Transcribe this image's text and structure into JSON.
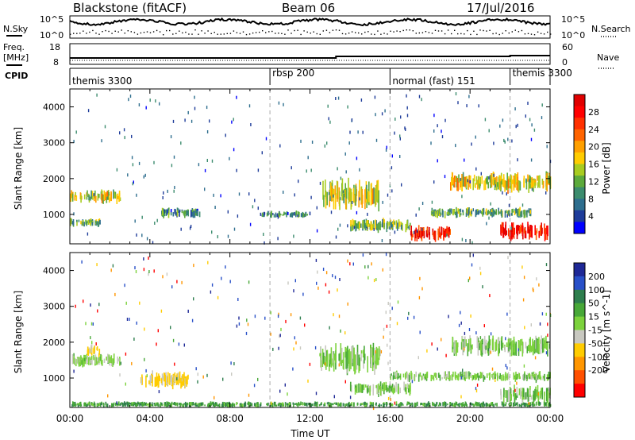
{
  "header": {
    "station": "Blackstone (fitACF)",
    "beam": "Beam 06",
    "date": "17/Jul/2016"
  },
  "top_panels": {
    "nsky_label": "N.Sky",
    "nsearch_label": "N.Search",
    "left_ticks_noise": [
      "10^5",
      "10^0"
    ],
    "right_ticks_noise": [
      "10^5",
      "10^0"
    ],
    "freq_label": "Freq.",
    "freq_unit": "[MHz]",
    "freq_ticks": [
      "18",
      "8"
    ],
    "nave_label": "Nave",
    "nave_ticks": [
      "60",
      "0"
    ],
    "cpid_label": "CPID"
  },
  "cpid_segments": [
    {
      "label": "themis 3300",
      "start": 0,
      "end": 10
    },
    {
      "label": "rbsp 200",
      "start": 10,
      "end": 16
    },
    {
      "label": "normal (fast) 151",
      "start": 16,
      "end": 22
    },
    {
      "label": "themis 3300",
      "start": 22,
      "end": 24
    }
  ],
  "time_axis": {
    "label": "Time UT",
    "ticks": [
      "00:00",
      "04:00",
      "08:00",
      "12:00",
      "16:00",
      "20:00",
      "00:00"
    ]
  },
  "range_axis": {
    "label": "Slant Range [km]",
    "ticks": [
      "1000",
      "2000",
      "3000",
      "4000"
    ]
  },
  "power_scale": {
    "label": "Power [dB]",
    "ticks": [
      "4",
      "8",
      "12",
      "16",
      "20",
      "24",
      "28"
    ],
    "colors": [
      "#0000ff",
      "#1e3c9a",
      "#2e6e8e",
      "#3c8c6e",
      "#5caa3c",
      "#a8cc20",
      "#ffcc00",
      "#ffa000",
      "#ff6400",
      "#ff3000",
      "#ff0000",
      "#e00000"
    ]
  },
  "velocity_scale": {
    "label": "Velocity [m s^-1]",
    "ticks": [
      "200",
      "100",
      "50",
      "15",
      "-15",
      "-50",
      "-100",
      "-200"
    ],
    "colors": [
      "#1e2896",
      "#2850c8",
      "#2e7e4e",
      "#48a838",
      "#7cd23c",
      "#c8c8c0",
      "#ffcc00",
      "#ff9600",
      "#ff5000",
      "#ff0000"
    ]
  },
  "chart_data": [
    {
      "type": "heatmap",
      "title": "Power",
      "xlabel": "Time UT",
      "ylabel": "Slant Range [km]",
      "xlim": [
        0,
        24
      ],
      "ylim": [
        180,
        4500
      ],
      "colorbar_label": "Power [dB]",
      "colorbar_range": [
        0,
        32
      ],
      "echo_bands": [
        {
          "t0": 0.0,
          "t1": 2.5,
          "r0": 1300,
          "r1": 1700,
          "value": 16
        },
        {
          "t0": 0.0,
          "t1": 1.5,
          "r0": 650,
          "r1": 900,
          "value": 12
        },
        {
          "t0": 4.5,
          "t1": 6.5,
          "r0": 900,
          "r1": 1200,
          "value": 8
        },
        {
          "t0": 9.5,
          "t1": 12.0,
          "r0": 900,
          "r1": 1100,
          "value": 8
        },
        {
          "t0": 12.5,
          "t1": 15.5,
          "r0": 1100,
          "r1": 2000,
          "value": 16
        },
        {
          "t0": 14.0,
          "t1": 17.0,
          "r0": 500,
          "r1": 900,
          "value": 12
        },
        {
          "t0": 17.0,
          "t1": 19.0,
          "r0": 250,
          "r1": 700,
          "value": 28
        },
        {
          "t0": 18.0,
          "t1": 23.0,
          "r0": 900,
          "r1": 1200,
          "value": 12
        },
        {
          "t0": 21.5,
          "t1": 24.0,
          "r0": 250,
          "r1": 800,
          "value": 28
        },
        {
          "t0": 19.0,
          "t1": 24.0,
          "r0": 1600,
          "r1": 2200,
          "value": 16
        }
      ]
    },
    {
      "type": "heatmap",
      "title": "Velocity",
      "xlabel": "Time UT",
      "ylabel": "Slant Range [km]",
      "xlim": [
        0,
        24
      ],
      "ylim": [
        180,
        4500
      ],
      "colorbar_label": "Velocity [m s^-1]",
      "colorbar_range": [
        -250,
        250
      ],
      "echo_bands": [
        {
          "t0": 0.0,
          "t1": 2.5,
          "r0": 1300,
          "r1": 1700,
          "value": -5
        },
        {
          "t0": 0.8,
          "t1": 1.5,
          "r0": 1600,
          "r1": 1950,
          "value": -60
        },
        {
          "t0": 3.5,
          "t1": 6.0,
          "r0": 700,
          "r1": 1200,
          "value": -60
        },
        {
          "t0": 12.5,
          "t1": 15.5,
          "r0": 1100,
          "r1": 2000,
          "value": 0
        },
        {
          "t0": 14.0,
          "t1": 17.0,
          "r0": 500,
          "r1": 900,
          "value": 0
        },
        {
          "t0": 16.0,
          "t1": 24.0,
          "r0": 900,
          "r1": 1200,
          "value": 0
        },
        {
          "t0": 21.5,
          "t1": 24.0,
          "r0": 250,
          "r1": 800,
          "value": 0
        },
        {
          "t0": 19.0,
          "t1": 24.0,
          "r0": 1600,
          "r1": 2200,
          "value": 0
        },
        {
          "t0": 0.0,
          "t1": 24.0,
          "r0": 180,
          "r1": 350,
          "value": 40
        }
      ]
    }
  ]
}
